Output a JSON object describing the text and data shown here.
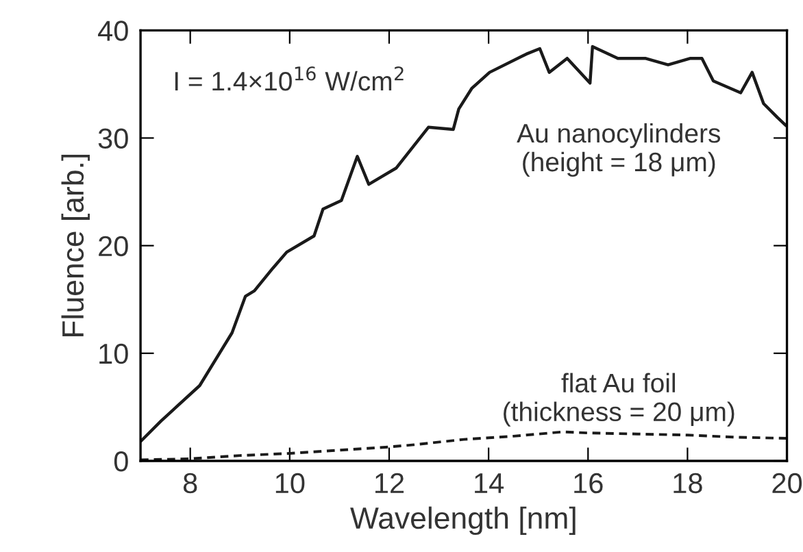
{
  "chart_data": {
    "type": "line",
    "xlabel": "Wavelength [nm]",
    "ylabel": "Fluence [arb.]",
    "xlim": [
      7,
      20
    ],
    "xticks": [
      8,
      10,
      12,
      14,
      16,
      18,
      20
    ],
    "ylim": [
      0,
      40
    ],
    "yticks": [
      0,
      10,
      20,
      30,
      40
    ],
    "grid": false,
    "legend": false,
    "marker": "none",
    "annotations": [
      "I = 1.4×10$^{16}$ W/cm$^{2}$"
    ],
    "series": [
      {
        "name": "Au nanocylinders\n(height = 18 μm)",
        "color": "#1a1a1a",
        "line_style": "solid",
        "x": [
          7.0,
          7.41,
          8.19,
          8.84,
          9.11,
          9.29,
          9.66,
          9.94,
          10.49,
          10.67,
          11.04,
          11.36,
          11.59,
          12.14,
          12.79,
          13.29,
          13.4,
          13.66,
          14.02,
          14.76,
          15.03,
          15.22,
          15.58,
          16.04,
          16.09,
          16.6,
          17.15,
          17.61,
          18.06,
          18.29,
          18.52,
          19.07,
          19.3,
          19.53,
          19.81,
          19.97
        ],
        "values": [
          1.8,
          3.7,
          7.0,
          11.9,
          15.3,
          15.8,
          17.9,
          19.4,
          20.9,
          23.4,
          24.2,
          28.3,
          25.7,
          27.2,
          31.0,
          30.8,
          32.7,
          34.6,
          36.1,
          37.8,
          38.3,
          36.1,
          37.4,
          35.1,
          38.5,
          37.4,
          37.4,
          36.8,
          37.4,
          37.4,
          35.3,
          34.2,
          36.1,
          33.2,
          31.9,
          31.2
        ]
      },
      {
        "name": "flat Au foil\n(thickness = 20 μm)",
        "color": "#1a1a1a",
        "line_style": "dashed",
        "x": [
          7.0,
          8.0,
          9.0,
          10.0,
          11.0,
          12.0,
          12.5,
          13.5,
          14.5,
          15.5,
          16.0,
          17.0,
          18.0,
          18.5,
          19.0,
          20.0
        ],
        "values": [
          0.1,
          0.2,
          0.5,
          0.7,
          1.0,
          1.3,
          1.5,
          2.0,
          2.3,
          2.7,
          2.6,
          2.5,
          2.4,
          2.3,
          2.2,
          2.1
        ]
      }
    ]
  }
}
